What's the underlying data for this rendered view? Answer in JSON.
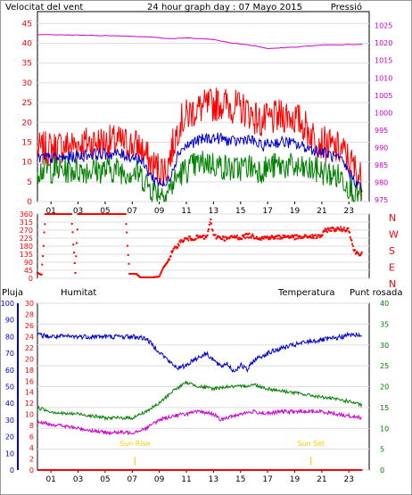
{
  "colors": {
    "wind_gust": "#ff0000",
    "wind_avg": "#0000cc",
    "wind_low": "#008000",
    "pressure": "#cc00cc",
    "direction": "#ff0000",
    "rain": "#ff0000",
    "humidity": "#0000cc",
    "temperature": "#008000",
    "dew_point": "#cc00cc",
    "sun_marker": "#ffcc00"
  },
  "chart_data": [
    {
      "type": "line",
      "title": "24 hour graph day : 07 Mayo 2015",
      "left_label": "Velocitat del vent",
      "right_label": "Pressió",
      "left_ticks": [
        0,
        5,
        10,
        15,
        20,
        25,
        30,
        35,
        40,
        45
      ],
      "right_ticks": [
        975,
        980,
        985,
        990,
        995,
        1000,
        1005,
        1010,
        1015,
        1020,
        1025
      ],
      "ylim_left": [
        0,
        48
      ],
      "ylim_right": [
        974.5,
        1029
      ],
      "x_ticks": [
        "01",
        "03",
        "05",
        "07",
        "09",
        "11",
        "13",
        "15",
        "17",
        "19",
        "21",
        "23"
      ],
      "xlim": [
        0,
        24.5
      ],
      "series": [
        {
          "name": "Velocitat del vent",
          "role": "gust",
          "x": [
            0,
            2,
            4,
            6,
            7.5,
            8.5,
            9.5,
            10.5,
            11.5,
            12.5,
            13.5,
            14.5,
            15.5,
            16.5,
            17.5,
            18.5,
            19.5,
            20.5,
            21.5,
            22.5,
            23.5,
            24
          ],
          "y": [
            13,
            14,
            15,
            15,
            14,
            9,
            8,
            20,
            23,
            24,
            25,
            24,
            23,
            20,
            21,
            22,
            20,
            16,
            14,
            13,
            8,
            5
          ]
        },
        {
          "role": "average",
          "x": [
            0,
            2,
            4,
            6,
            7.5,
            8.5,
            9.5,
            10.5,
            11.5,
            12.5,
            13.5,
            14.5,
            15.5,
            16.5,
            17.5,
            18.5,
            19.5,
            20.5,
            21.5,
            22.5,
            23.5,
            24
          ],
          "y": [
            11,
            11,
            12,
            12,
            11,
            6,
            4,
            13,
            15,
            16,
            16,
            15,
            16,
            14,
            15,
            15,
            14,
            13,
            12,
            10,
            5,
            3
          ]
        },
        {
          "role": "minimum",
          "x": [
            0,
            2,
            4,
            6,
            7.5,
            8.5,
            9.5,
            10.5,
            11.5,
            12.5,
            13.5,
            14.5,
            15.5,
            16.5,
            17.5,
            18.5,
            19.5,
            20.5,
            21.5,
            22.5,
            23.5,
            24
          ],
          "y": [
            8,
            8,
            8,
            8,
            7,
            3,
            2,
            7,
            9,
            10,
            9,
            8,
            9,
            8,
            9,
            9,
            8,
            8,
            7,
            6,
            2,
            1
          ]
        },
        {
          "name": "Pressió",
          "axis": "right",
          "x": [
            0,
            4,
            8,
            10,
            11,
            13,
            14,
            16,
            17,
            19,
            21,
            24
          ],
          "y": [
            1022.4,
            1022.2,
            1021.8,
            1021.2,
            1021.5,
            1021.0,
            1020.2,
            1019.2,
            1018.4,
            1018.8,
            1019.4,
            1019.6
          ]
        }
      ]
    },
    {
      "type": "scatter",
      "y_ticks": [
        0,
        45,
        90,
        135,
        180,
        225,
        270,
        315,
        360
      ],
      "right_labels": [
        "N",
        "W",
        "S",
        "E",
        "N"
      ],
      "ylim": [
        0,
        360
      ],
      "xlim": [
        0,
        24.5
      ],
      "series": [
        {
          "name": "direction",
          "x": [
            0,
            0.3,
            0.6,
            1,
            1.5,
            2,
            2.5,
            2.8,
            3,
            3.5,
            4,
            4.5,
            5,
            5.5,
            6,
            6.5,
            6.8,
            7,
            7.3,
            7.6,
            8,
            8.5,
            9,
            9.3,
            9.6,
            9.9,
            10.2,
            10.5,
            10.8,
            11,
            11.5,
            12,
            12.5,
            12.8,
            13,
            13.5,
            14,
            14.5,
            15,
            15.5,
            16,
            16.5,
            17,
            17.5,
            18,
            18.5,
            19,
            19.5,
            20,
            20.5,
            21,
            21.3,
            21.6,
            22,
            22.5,
            23,
            23.2,
            23.4,
            23.7,
            24
          ],
          "y": [
            30,
            20,
            360,
            360,
            360,
            360,
            360,
            30,
            360,
            360,
            360,
            360,
            360,
            360,
            360,
            360,
            25,
            25,
            25,
            5,
            5,
            5,
            10,
            60,
            90,
            140,
            170,
            200,
            215,
            220,
            225,
            230,
            228,
            330,
            235,
            230,
            220,
            232,
            228,
            240,
            235,
            225,
            230,
            228,
            232,
            235,
            230,
            228,
            235,
            232,
            240,
            270,
            275,
            275,
            275,
            275,
            210,
            150,
            140,
            140
          ]
        }
      ]
    },
    {
      "type": "line",
      "x_ticks": [
        "01",
        "03",
        "05",
        "07",
        "09",
        "11",
        "13",
        "15",
        "17",
        "19",
        "21",
        "23"
      ],
      "xlim": [
        0,
        24.5
      ],
      "axis_labels": {
        "rain": "Pluja",
        "humidity": "Humitat",
        "temperature": "Temperatura",
        "dew_point": "Punt rosada"
      },
      "rain_ticks": [
        0,
        2,
        4,
        6,
        8,
        10,
        12,
        14,
        16,
        18,
        20,
        22,
        24,
        26,
        28,
        30
      ],
      "humidity_ticks": [
        0,
        10,
        20,
        30,
        40,
        50,
        60,
        70,
        80,
        90,
        100
      ],
      "temp_ticks": [
        0,
        5,
        10,
        15,
        20,
        25,
        30,
        35,
        40
      ],
      "ylim_temp": [
        0,
        40
      ],
      "ylim_humidity": [
        0,
        100
      ],
      "ylim_rain": [
        0,
        30
      ],
      "annotations": [
        {
          "text": "Sun Rise",
          "x": 7.2
        },
        {
          "text": "Sun Set",
          "x": 20.2
        }
      ],
      "series": [
        {
          "name": "Humitat",
          "axis": "humidity",
          "x": [
            0,
            1,
            3,
            5,
            7,
            8,
            9,
            10,
            10.5,
            11,
            11.5,
            12,
            12.5,
            13,
            13.5,
            14,
            14.5,
            15,
            15.5,
            16,
            16.5,
            17,
            18,
            19,
            20,
            21,
            22,
            23,
            24
          ],
          "y": [
            81,
            80,
            80,
            80,
            80,
            79,
            71,
            63,
            61,
            63,
            66,
            68,
            70,
            66,
            62,
            64,
            59,
            63,
            60,
            66,
            68,
            70,
            73,
            75,
            77,
            78,
            79,
            81,
            81
          ]
        },
        {
          "name": "Temperatura",
          "axis": "temp",
          "x": [
            0,
            1,
            2,
            3,
            4,
            5,
            6,
            7,
            8,
            9,
            10,
            11,
            12,
            13,
            14,
            15,
            16,
            17,
            18,
            19,
            20,
            21,
            22,
            23,
            24
          ],
          "y": [
            15,
            14,
            13.5,
            13.5,
            13,
            12.5,
            12.5,
            12.5,
            14,
            16,
            19,
            21,
            20,
            19.5,
            20,
            20,
            20.5,
            19.5,
            19,
            18.5,
            18,
            17.5,
            17,
            16.5,
            15.5
          ]
        },
        {
          "name": "Punt rosada",
          "axis": "temp",
          "x": [
            0,
            1,
            2,
            3,
            4,
            5,
            6,
            7,
            8,
            9,
            10,
            11,
            12,
            13,
            13.5,
            14,
            15,
            16,
            17,
            18,
            19,
            20,
            21,
            22,
            23,
            24
          ],
          "y": [
            11.5,
            11,
            10.5,
            10,
            9.5,
            9,
            9,
            9,
            10,
            12,
            13,
            13.5,
            14,
            13.5,
            12,
            12.5,
            13.5,
            14,
            13.5,
            14,
            14,
            14,
            14,
            13.5,
            13,
            12.5
          ]
        },
        {
          "name": "Pluja",
          "axis": "rain",
          "x": [
            0,
            24
          ],
          "y": [
            0,
            0
          ]
        }
      ]
    }
  ]
}
